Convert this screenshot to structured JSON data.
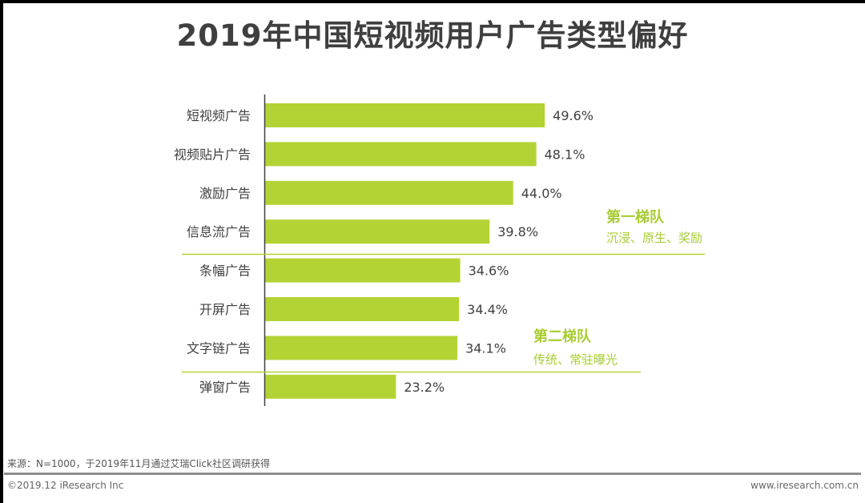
{
  "chart_data": {
    "type": "bar",
    "orientation": "horizontal",
    "title": "2019年中国短视频用户广告类型偏好",
    "categories": [
      "短视频广告",
      "视频贴片广告",
      "激励广告",
      "信息流广告",
      "条幅广告",
      "开屏广告",
      "文字链广告",
      "弹窗广告"
    ],
    "values": [
      49.6,
      48.1,
      44.0,
      39.8,
      34.6,
      34.4,
      34.1,
      23.2
    ],
    "value_labels": [
      "49.6%",
      "48.1%",
      "44.0%",
      "39.8%",
      "34.6%",
      "34.4%",
      "34.1%",
      "23.2%"
    ],
    "unit": "%",
    "grid": false,
    "bar_color": "#b3d334",
    "annotations": [
      {
        "title": "第一梯队",
        "subtitle": "沉浸、原生、奖励"
      },
      {
        "title": "第二梯队",
        "subtitle": "传统、常驻曝光"
      }
    ]
  },
  "footer": {
    "source": "来源：N=1000，于2019年11月通过艾瑞Click社区调研获得",
    "copyright": "©2019.12 iResearch Inc",
    "url": "www.iresearch.com.cn"
  },
  "colors": {
    "accent": "#a8cc32",
    "text": "#404040",
    "frame": "#000000"
  }
}
